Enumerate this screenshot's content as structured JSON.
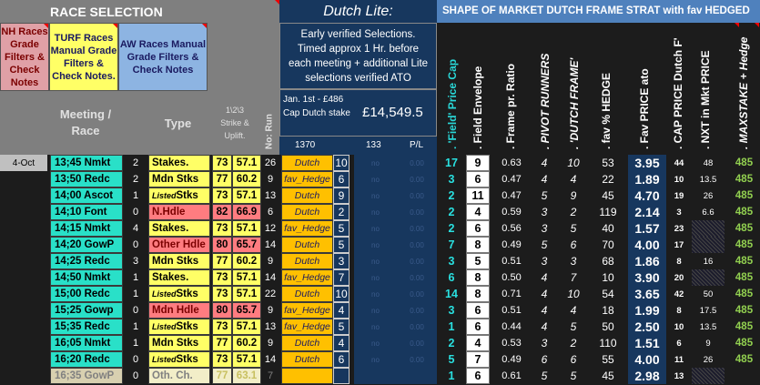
{
  "header": {
    "race_selection": "RACE SELECTION",
    "dutch_lite": "Dutch Lite:",
    "shape_title": "SHAPE OF MARKET DUTCH FRAME STRAT with fav HEDGED"
  },
  "filters": {
    "nh": "NH Races Grade Filters & Check Notes",
    "turf": "TURF Races Manual Grade Filters & Check Notes.",
    "aw": "AW Races Manual Grade Filters & Check Notes"
  },
  "lite_note": "Early verified Selections. Timed approx 1 Hr. before each meeting + additional Lite selections verified ATO",
  "cap_box": {
    "label": "Jan. 1st - £486 Cap Dutch stake",
    "amount": "£14,549.5"
  },
  "cols": {
    "meeting": "Meeting / Race",
    "type": "Type",
    "strike": "1\\2\\3 Strike & Uplift.",
    "run": "No: Run",
    "n1370": "1370",
    "n133": "133",
    "pl": "P/L",
    "field_cap": ". 'Field' Price Cap",
    "field_env": ". Field Envelope",
    "frame_ratio": ". Frame pr. Ratio",
    "pivot": ". PIVOT RUNNERS",
    "dutch_frame": ". 'DUTCH FRAME'",
    "fav_hedge": ". fav % HEDGE",
    "fav_price": ". Fav PRICE ato",
    "cap_price": ". CAP PRICE Dutch F'",
    "nxt_price": ". NXT in Mkt PRICE",
    "maxstake": ". MAXSTAKE + Hedge"
  },
  "date": "4-Oct",
  "rows": [
    {
      "race": "13;45 Nmkt",
      "num": "2",
      "type": "Stakes.",
      "tl": "",
      "tc": "y",
      "s1": "73",
      "s2": "57.1",
      "run": "26",
      "dutch": "Dutch",
      "d": "10",
      "np": "no",
      "z": "0.00",
      "fc": "17",
      "fe": "9",
      "fr": "0.63",
      "pv": "4",
      "df": "10",
      "fh": "53",
      "fp": "3.95",
      "cp": "44",
      "nx": "48",
      "ms": "485"
    },
    {
      "race": "13;50 Redc",
      "num": "2",
      "type": "Mdn Stks",
      "tl": "",
      "tc": "y",
      "s1": "77",
      "s2": "60.2",
      "run": "9",
      "dutch": "fav_Hedge",
      "d": "6",
      "np": "no",
      "z": "0.00",
      "fc": "3",
      "fe": "6",
      "fr": "0.47",
      "pv": "4",
      "df": "4",
      "fh": "22",
      "fp": "1.89",
      "cp": "10",
      "nx": "13.5",
      "ms": "485"
    },
    {
      "race": "14;00 Ascot",
      "num": "1",
      "type": "Stks",
      "tl": "Listed",
      "tc": "y",
      "s1": "73",
      "s2": "57.1",
      "run": "13",
      "dutch": "Dutch",
      "d": "9",
      "np": "no",
      "z": "0.00",
      "fc": "2",
      "fe": "11",
      "fr": "0.47",
      "pv": "5",
      "df": "9",
      "fh": "45",
      "fp": "4.70",
      "cp": "19",
      "nx": "26",
      "ms": "485"
    },
    {
      "race": "14;10 Font",
      "num": "0",
      "type": "N.Hdle",
      "tl": "",
      "tc": "p",
      "s1": "82",
      "s2": "66.9",
      "run": "6",
      "dutch": "Dutch",
      "d": "2",
      "np": "no",
      "z": "0.00",
      "fc": "2",
      "fe": "4",
      "fr": "0.59",
      "pv": "3",
      "df": "2",
      "fh": "119",
      "fp": "2.14",
      "cp": "3",
      "nx": "6.6",
      "ms": "485"
    },
    {
      "race": "14;15 Nmkt",
      "num": "4",
      "type": "Stakes.",
      "tl": "",
      "tc": "y",
      "s1": "73",
      "s2": "57.1",
      "run": "12",
      "dutch": "fav_Hedge",
      "d": "5",
      "np": "no",
      "z": "0.00",
      "fc": "2",
      "fe": "6",
      "fr": "0.56",
      "pv": "3",
      "df": "5",
      "fh": "40",
      "fp": "1.57",
      "cp": "23",
      "nx": "",
      "ms": "485"
    },
    {
      "race": "14;20 GowP",
      "num": "0",
      "type": "Other Hdle",
      "tl": "",
      "tc": "p",
      "s1": "80",
      "s2": "65.7",
      "run": "14",
      "dutch": "Dutch",
      "d": "5",
      "np": "no",
      "z": "0.00",
      "fc": "7",
      "fe": "8",
      "fr": "0.49",
      "pv": "5",
      "df": "6",
      "fh": "70",
      "fp": "4.00",
      "cp": "17",
      "nx": "",
      "ms": "485"
    },
    {
      "race": "14;25 Redc",
      "num": "3",
      "type": "Mdn Stks",
      "tl": "",
      "tc": "y",
      "s1": "77",
      "s2": "60.2",
      "run": "9",
      "dutch": "Dutch",
      "d": "3",
      "np": "no",
      "z": "0.00",
      "fc": "3",
      "fe": "5",
      "fr": "0.51",
      "pv": "3",
      "df": "3",
      "fh": "68",
      "fp": "1.86",
      "cp": "8",
      "nx": "16",
      "ms": "485"
    },
    {
      "race": "14;50 Nmkt",
      "num": "1",
      "type": "Stakes.",
      "tl": "",
      "tc": "y",
      "s1": "73",
      "s2": "57.1",
      "run": "14",
      "dutch": "fav_Hedge",
      "d": "7",
      "np": "no",
      "z": "0.00",
      "fc": "6",
      "fe": "8",
      "fr": "0.50",
      "pv": "4",
      "df": "7",
      "fh": "10",
      "fp": "3.90",
      "cp": "20",
      "nx": "",
      "ms": "485"
    },
    {
      "race": "15;00 Redc",
      "num": "1",
      "type": "Stks",
      "tl": "Listed",
      "tc": "y",
      "s1": "73",
      "s2": "57.1",
      "run": "22",
      "dutch": "Dutch",
      "d": "10",
      "np": "no",
      "z": "0.00",
      "fc": "14",
      "fe": "8",
      "fr": "0.71",
      "pv": "4",
      "df": "10",
      "fh": "54",
      "fp": "3.65",
      "cp": "42",
      "nx": "50",
      "ms": "485"
    },
    {
      "race": "15;25 Gowp",
      "num": "0",
      "type": "Mdn Hdle",
      "tl": "",
      "tc": "p",
      "s1": "80",
      "s2": "65.7",
      "run": "9",
      "dutch": "fav_Hedge",
      "d": "4",
      "np": "no",
      "z": "0.00",
      "fc": "3",
      "fe": "6",
      "fr": "0.51",
      "pv": "4",
      "df": "4",
      "fh": "18",
      "fp": "1.99",
      "cp": "8",
      "nx": "17.5",
      "ms": "485"
    },
    {
      "race": "15;35 Redc",
      "num": "1",
      "type": "Stks",
      "tl": "Listed",
      "tc": "y",
      "s1": "73",
      "s2": "57.1",
      "run": "13",
      "dutch": "fav_Hedge",
      "d": "5",
      "np": "no",
      "z": "0.00",
      "fc": "1",
      "fe": "6",
      "fr": "0.44",
      "pv": "4",
      "df": "5",
      "fh": "50",
      "fp": "2.50",
      "cp": "10",
      "nx": "13.5",
      "ms": "485"
    },
    {
      "race": "16;05 Nmkt",
      "num": "1",
      "type": "Mdn Stks",
      "tl": "",
      "tc": "y",
      "s1": "77",
      "s2": "60.2",
      "run": "9",
      "dutch": "Dutch",
      "d": "4",
      "np": "no",
      "z": "0.00",
      "fc": "2",
      "fe": "4",
      "fr": "0.53",
      "pv": "3",
      "df": "2",
      "fh": "110",
      "fp": "1.51",
      "cp": "6",
      "nx": "9",
      "ms": "485"
    },
    {
      "race": "16;20 Redc",
      "num": "0",
      "type": "Stks",
      "tl": "Listed",
      "tc": "y",
      "s1": "73",
      "s2": "57.1",
      "run": "14",
      "dutch": "Dutch",
      "d": "6",
      "np": "no",
      "z": "0.00",
      "fc": "5",
      "fe": "7",
      "fr": "0.49",
      "pv": "6",
      "df": "6",
      "fh": "55",
      "fp": "4.00",
      "cp": "11",
      "nx": "26",
      "ms": "485"
    },
    {
      "race": "16;35 GowP",
      "num": "0",
      "type": "Oth. Ch.",
      "tl": "",
      "tc": "d",
      "s1": "77",
      "s2": "63.1",
      "run": "7",
      "dutch": "",
      "d": "",
      "np": "",
      "z": "",
      "fc": "1",
      "fe": "6",
      "fr": "0.61",
      "pv": "5",
      "df": "5",
      "fh": "45",
      "fp": "2.98",
      "cp": "13",
      "nx": "",
      "ms": ""
    }
  ]
}
